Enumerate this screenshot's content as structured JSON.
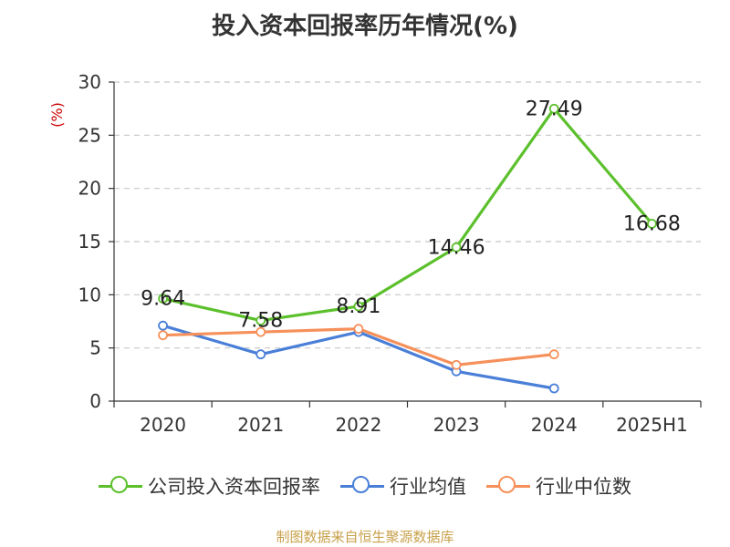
{
  "chart_data": {
    "type": "line",
    "title": "投入资本回报率历年情况(%)",
    "ylabel": "(%)",
    "categories": [
      "2020",
      "2021",
      "2022",
      "2023",
      "2024",
      "2025H1"
    ],
    "ylim": [
      0,
      30
    ],
    "yticks": [
      0,
      5,
      10,
      15,
      20,
      25,
      30
    ],
    "grid": true,
    "legend_position": "bottom",
    "series": [
      {
        "name": "公司投入资本回报率",
        "values": [
          9.64,
          7.58,
          8.91,
          14.46,
          27.49,
          16.68
        ],
        "color": "#5cc02c",
        "show_labels": true
      },
      {
        "name": "行业均值",
        "values": [
          7.1,
          4.4,
          6.5,
          2.8,
          1.2,
          null
        ],
        "color": "#4a7fd8",
        "show_labels": false
      },
      {
        "name": "行业中位数",
        "values": [
          6.2,
          6.5,
          6.8,
          3.4,
          4.4,
          null
        ],
        "color": "#f6905a",
        "show_labels": false
      }
    ]
  },
  "legend": {
    "items": [
      {
        "label": "公司投入资本回报率",
        "color": "#5cc02c"
      },
      {
        "label": "行业均值",
        "color": "#4a7fd8"
      },
      {
        "label": "行业中位数",
        "color": "#f6905a"
      }
    ]
  },
  "source": "制图数据来自恒生聚源数据库"
}
